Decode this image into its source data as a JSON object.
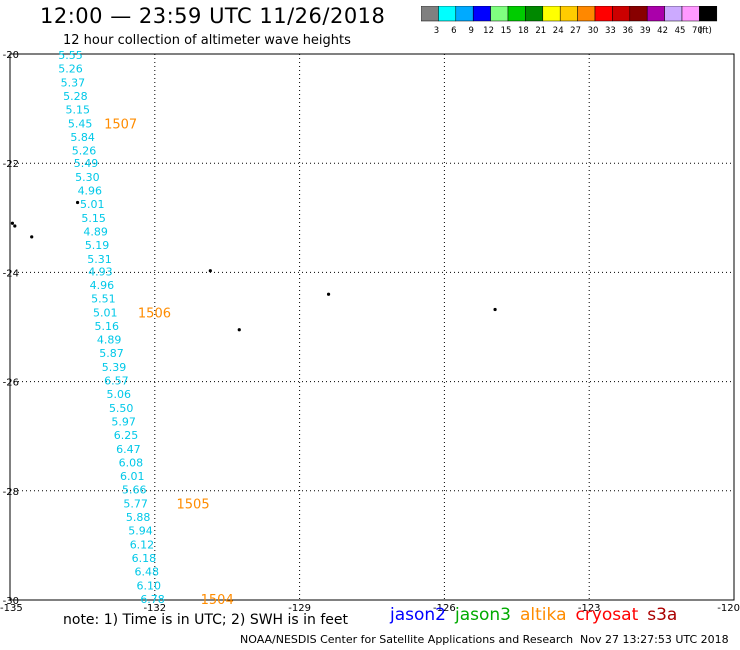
{
  "header": {
    "title": "12:00 — 23:59 UTC 11/26/2018",
    "subtitle": "12 hour collection of altimeter wave heights"
  },
  "colorbar": {
    "colors": [
      "#808080",
      "#00ffff",
      "#00aaff",
      "#0000ff",
      "#80ff80",
      "#00cc00",
      "#008800",
      "#ffff00",
      "#ffcc00",
      "#ff8800",
      "#ff0000",
      "#cc0000",
      "#880000",
      "#aa00aa",
      "#ccaaff",
      "#ff99ff",
      "#000000"
    ],
    "labels": [
      "3",
      "6",
      "9",
      "12",
      "15",
      "18",
      "21",
      "24",
      "27",
      "30",
      "33",
      "36",
      "39",
      "42",
      "45",
      "70",
      "(ft)"
    ]
  },
  "chart_data": {
    "type": "scatter",
    "title": "12:00 — 23:59 UTC 11/26/2018",
    "xlim": [
      -135,
      -120
    ],
    "ylim": [
      -30,
      -20
    ],
    "x_ticks": [
      -135,
      -132,
      -129,
      -126,
      -123,
      -120
    ],
    "y_ticks": [
      -20,
      -22,
      -24,
      -26,
      -28,
      -30
    ],
    "grid": true,
    "series": [
      {
        "name": "jason2",
        "color": "#00c8e8",
        "labels": [
          "5.55",
          "5.26",
          "5.37",
          "5.28",
          "5.15",
          "5.45",
          "5.84",
          "5.26",
          "5.49",
          "5.30",
          "4.96",
          "5.01",
          "5.15",
          "4.89",
          "5.19",
          "5.31",
          "4.93",
          "4.96",
          "5.51",
          "5.01",
          "5.16",
          "4.89",
          "5.87",
          "5.39",
          "6.57",
          "5.06",
          "5.50",
          "5.97",
          "6.25",
          "6.47",
          "6.08",
          "6.01",
          "5.66",
          "5.77",
          "5.88",
          "5.94",
          "6.12",
          "6.18",
          "6.48",
          "6.10",
          "6.78"
        ],
        "lat": [
          -20.02,
          -20.27,
          -20.52,
          -20.77,
          -21.02,
          -21.27,
          -21.52,
          -21.77,
          -22.0,
          -22.25,
          -22.5,
          -22.75,
          -23.0,
          -23.25,
          -23.5,
          -23.75,
          -23.98,
          -24.23,
          -24.48,
          -24.73,
          -24.98,
          -25.23,
          -25.48,
          -25.73,
          -25.98,
          -26.23,
          -26.48,
          -26.73,
          -26.98,
          -27.23,
          -27.48,
          -27.73,
          -27.98,
          -28.23,
          -28.48,
          -28.73,
          -28.98,
          -29.23,
          -29.48,
          -29.73,
          -29.98
        ],
        "lon": [
          -134.0,
          -134.0,
          -133.95,
          -133.9,
          -133.85,
          -133.8,
          -133.75,
          -133.72,
          -133.68,
          -133.65,
          -133.6,
          -133.55,
          -133.52,
          -133.48,
          -133.45,
          -133.4,
          -133.38,
          -133.35,
          -133.32,
          -133.28,
          -133.25,
          -133.2,
          -133.15,
          -133.1,
          -133.05,
          -133.0,
          -132.95,
          -132.9,
          -132.85,
          -132.8,
          -132.75,
          -132.72,
          -132.68,
          -132.65,
          -132.6,
          -132.55,
          -132.52,
          -132.48,
          -132.42,
          -132.38,
          -132.3
        ]
      }
    ],
    "hour_labels": {
      "color": "#ff8c00",
      "labels": [
        "1507",
        "1506",
        "1505",
        "1504"
      ],
      "lat": [
        -21.27,
        -24.73,
        -28.23,
        -29.98
      ],
      "lon": [
        -133.05,
        -132.35,
        -131.55,
        -131.05
      ]
    },
    "islands": {
      "lat": [
        -22.72,
        -23.1,
        -23.15,
        -23.35,
        -23.97,
        -24.4,
        -25.05,
        -24.68
      ],
      "lon": [
        -133.6,
        -134.95,
        -134.9,
        -134.55,
        -130.85,
        -128.4,
        -130.25,
        -124.95
      ]
    }
  },
  "footer": {
    "note": "note: 1) Time is in UTC; 2) SWH is in feet",
    "legend": [
      {
        "name": "jason2",
        "color": "#0000ff"
      },
      {
        "name": "jason3",
        "color": "#00aa00"
      },
      {
        "name": "altika",
        "color": "#ff8c00"
      },
      {
        "name": "cryosat",
        "color": "#ff0000"
      },
      {
        "name": "s3a",
        "color": "#aa0000"
      }
    ],
    "credit": "NOAA/NESDIS Center for Satellite Applications and Research",
    "timestamp": "Nov 27 13:27:53 UTC 2018"
  }
}
